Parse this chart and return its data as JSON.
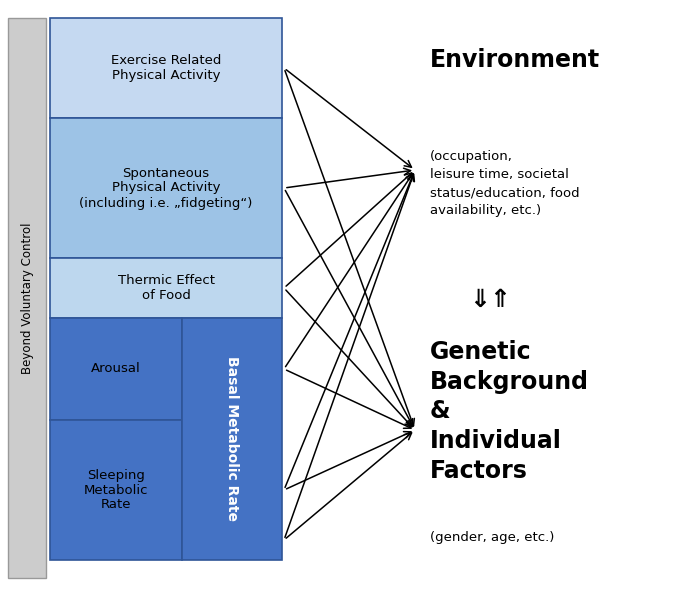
{
  "fig_width": 6.76,
  "fig_height": 5.94,
  "bg_color": "#ffffff",
  "beyond_voluntary_label": "Beyond Voluntary Control",
  "beyond_voluntary_color": "#cccccc",
  "box_colors": {
    "exercise": "#c5d9f1",
    "spontaneous": "#9dc3e6",
    "thermic": "#bdd7ee",
    "bmr_dark": "#4472c4",
    "arousal": "#4472c4",
    "sleeping": "#4472c4"
  },
  "box_border_color": "#2f5597",
  "labels": {
    "exercise": "Exercise Related\nPhysical Activity",
    "spontaneous": "Spontaneous\nPhysical Activity\n(including i.e. „fidgeting“)",
    "thermic": "Thermic Effect\nof Food",
    "arousal": "Arousal",
    "sleeping": "Sleeping\nMetabolic\nRate",
    "bmr": "Basal Metabolic Rate"
  },
  "right_title_bold": "Environment",
  "right_title_normal": "(occupation,\nleisure time, societal\nstatus/education, food\navailability, etc.)",
  "right_arrow_symbol": "⇓⇑",
  "right_bottom_bold": "Genetic\nBackground\n&\nIndividual\nFactors",
  "right_bottom_normal": "(gender, age, etc.)",
  "font_color": "#000000"
}
